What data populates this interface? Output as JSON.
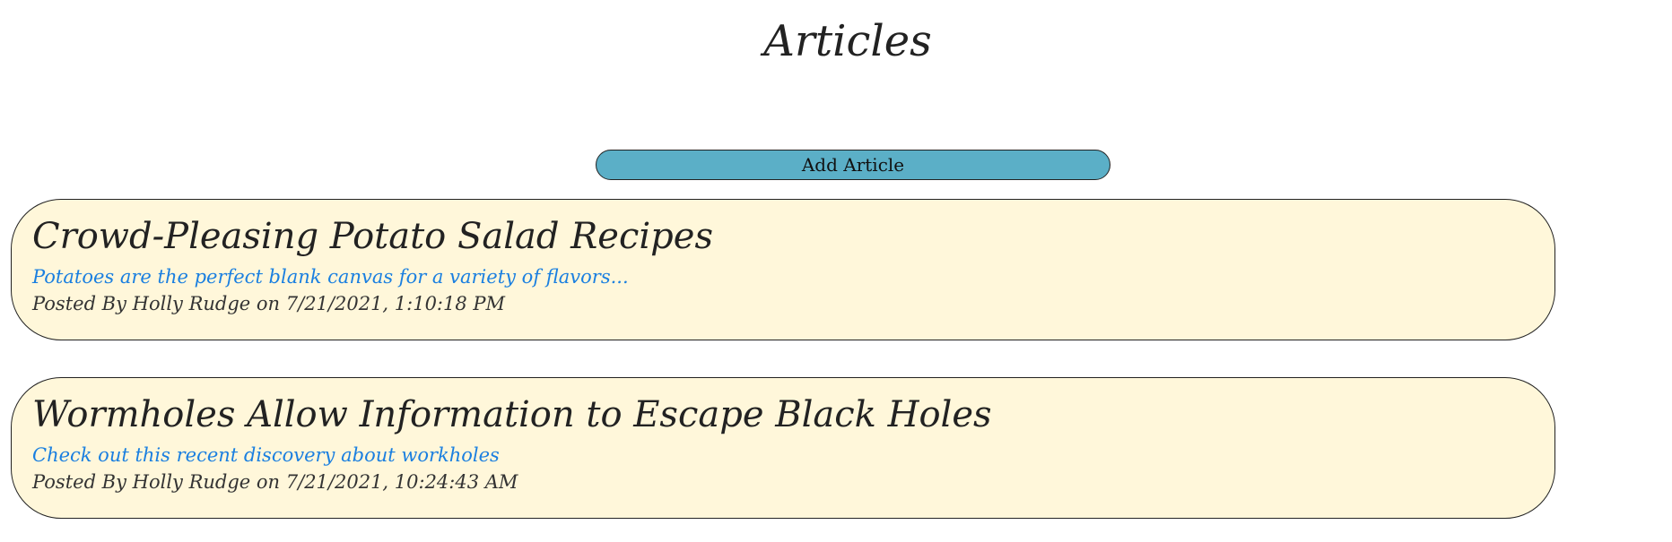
{
  "page": {
    "title": "Articles",
    "add_button_label": "Add Article"
  },
  "articles": [
    {
      "title": "Crowd-Pleasing Potato Salad Recipes",
      "summary": "Potatoes are the perfect blank canvas for a variety of flavors...",
      "meta": "Posted By Holly Rudge on 7/21/2021, 1:10:18 PM"
    },
    {
      "title": "Wormholes Allow Information to Escape Black Holes",
      "summary": "Check out this recent discovery about workholes",
      "meta": "Posted By Holly Rudge on 7/21/2021, 10:24:43 AM"
    }
  ],
  "colors": {
    "button_bg": "#5bafc7",
    "card_bg": "#fff7da",
    "link": "#1a7fe0",
    "border": "#222222"
  }
}
